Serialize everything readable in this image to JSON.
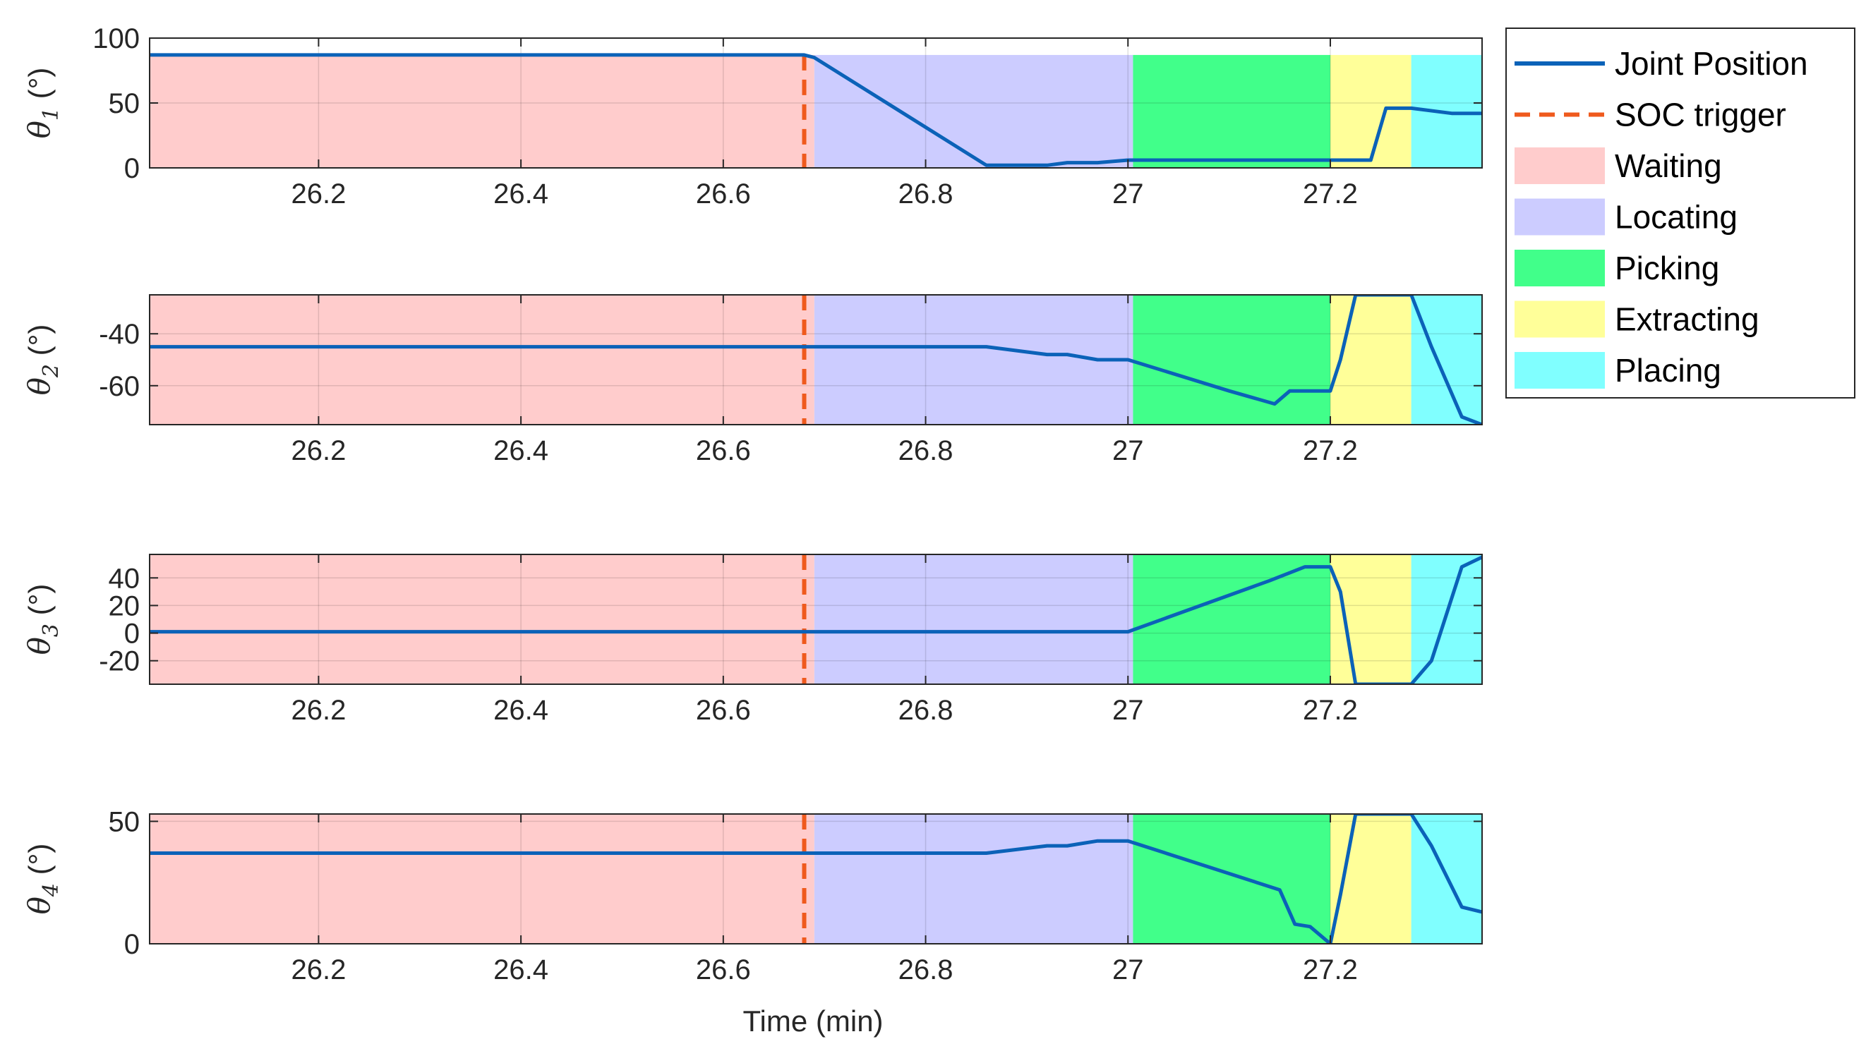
{
  "chart_data": {
    "type": "line",
    "xlabel": "Time (min)",
    "x_range": [
      26.033,
      27.35
    ],
    "x_ticks": [
      26.2,
      26.4,
      26.6,
      26.8,
      27,
      27.2
    ],
    "x_tick_labels": [
      "26.2",
      "26.4",
      "26.6",
      "26.8",
      "27",
      "27.2"
    ],
    "grid": true,
    "legend_position": "top-right outside",
    "soc_trigger_x": 26.68,
    "phases": [
      {
        "name": "Waiting",
        "start": 26.033,
        "end": 26.69,
        "color": "#ffcccc"
      },
      {
        "name": "Locating",
        "start": 26.69,
        "end": 27.005,
        "color": "#ccccff"
      },
      {
        "name": "Picking",
        "start": 27.005,
        "end": 27.2,
        "color": "#41ff8a"
      },
      {
        "name": "Extracting",
        "start": 27.2,
        "end": 27.28,
        "color": "#ffff99"
      },
      {
        "name": "Placing",
        "start": 27.28,
        "end": 27.35,
        "color": "#80ffff"
      }
    ],
    "legend": [
      {
        "label": "Joint Position",
        "kind": "line",
        "color": "#0b62b8"
      },
      {
        "label": "SOC trigger",
        "kind": "dashed",
        "color": "#ef5a1d"
      },
      {
        "label": "Waiting",
        "kind": "patch",
        "color": "#ffcccc"
      },
      {
        "label": "Locating",
        "kind": "patch",
        "color": "#ccccff"
      },
      {
        "label": "Picking",
        "kind": "patch",
        "color": "#41ff8a"
      },
      {
        "label": "Extracting",
        "kind": "patch",
        "color": "#ffff99"
      },
      {
        "label": "Placing",
        "kind": "patch",
        "color": "#80ffff"
      }
    ],
    "subplots": [
      {
        "ylabel_symbol": "θ",
        "ylabel_sub": "1",
        "ylabel_unit": " (°)",
        "ylim": [
          0,
          100
        ],
        "y_ticks": [
          0,
          50,
          100
        ],
        "y_tick_labels": [
          "0",
          "50",
          "100"
        ],
        "band_top": 87,
        "series": {
          "name": "Joint Position",
          "x": [
            26.033,
            26.68,
            26.69,
            26.86,
            26.92,
            26.94,
            26.97,
            27.0,
            27.1,
            27.2,
            27.24,
            27.255,
            27.28,
            27.32,
            27.35
          ],
          "y": [
            87,
            87,
            85,
            2,
            2,
            4,
            4,
            6,
            6,
            6,
            6,
            46,
            46,
            42,
            42
          ]
        }
      },
      {
        "ylabel_symbol": "θ",
        "ylabel_sub": "2",
        "ylabel_unit": " (°)",
        "ylim": [
          -75,
          -25
        ],
        "y_ticks": [
          -60,
          -40
        ],
        "y_tick_labels": [
          "-60",
          "-40"
        ],
        "band_top": -25,
        "series": {
          "name": "Joint Position",
          "x": [
            26.033,
            26.68,
            26.86,
            26.92,
            26.94,
            26.97,
            27.0,
            27.1,
            27.145,
            27.16,
            27.2,
            27.21,
            27.225,
            27.28,
            27.3,
            27.33,
            27.35
          ],
          "y": [
            -45,
            -45,
            -45,
            -48,
            -48,
            -50,
            -50,
            -62,
            -67,
            -62,
            -62,
            -50,
            -25,
            -25,
            -45,
            -72,
            -75
          ]
        }
      },
      {
        "ylabel_symbol": "θ",
        "ylabel_sub": "3",
        "ylabel_unit": " (°)",
        "ylim": [
          -37,
          57
        ],
        "y_ticks": [
          -20,
          0,
          20,
          40
        ],
        "y_tick_labels": [
          "-20",
          "0",
          "20",
          "40"
        ],
        "band_top": 57,
        "series": {
          "name": "Joint Position",
          "x": [
            26.033,
            26.68,
            26.86,
            27.0,
            27.14,
            27.175,
            27.2,
            27.21,
            27.225,
            27.28,
            27.3,
            27.33,
            27.35
          ],
          "y": [
            1,
            1,
            1,
            1,
            38,
            48,
            48,
            30,
            -37,
            -37,
            -20,
            48,
            55
          ]
        }
      },
      {
        "ylabel_symbol": "θ",
        "ylabel_sub": "4",
        "ylabel_unit": " (°)",
        "ylim": [
          0,
          53
        ],
        "y_ticks": [
          0,
          50
        ],
        "y_tick_labels": [
          "0",
          "50"
        ],
        "band_top": 53,
        "series": {
          "name": "Joint Position",
          "x": [
            26.033,
            26.68,
            26.86,
            26.92,
            26.94,
            26.97,
            27.0,
            27.15,
            27.165,
            27.18,
            27.2,
            27.21,
            27.225,
            27.28,
            27.3,
            27.33,
            27.35
          ],
          "y": [
            37,
            37,
            37,
            40,
            40,
            42,
            42,
            22,
            8,
            7,
            0,
            20,
            53,
            53,
            40,
            15,
            13
          ]
        }
      }
    ]
  }
}
